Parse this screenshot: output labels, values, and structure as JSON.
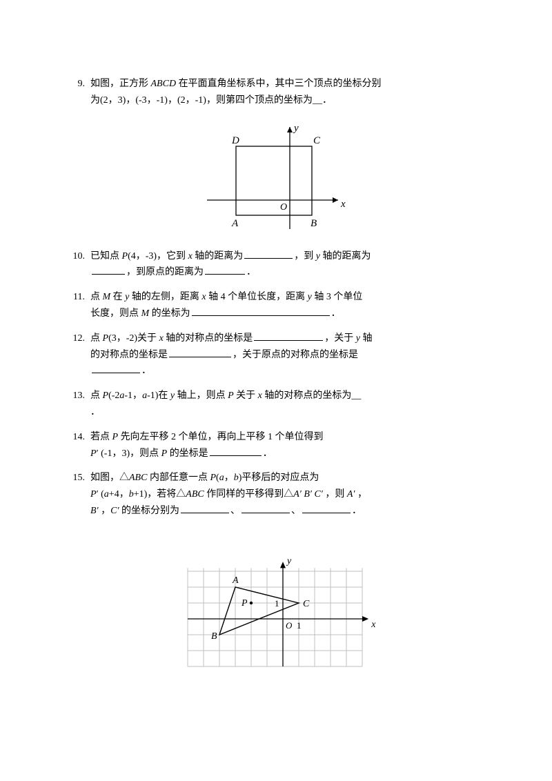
{
  "problems": {
    "9": {
      "num": "9.",
      "line1": "如图，正方形 ",
      "abcd": "ABCD",
      "line1b": " 在平面直角坐标系中，其中三个顶点的坐标分别",
      "line2": "为(2，3)，(-3，-1)，(2，-1)，则第四个顶点的坐标为__．"
    },
    "10": {
      "num": "10.",
      "a": "已知点 ",
      "p": "P",
      "b": "(4，-3)，它到 ",
      "x": "x",
      "c": " 轴的距离为",
      "d": "，到 ",
      "y": "y",
      "e": " 轴的距离为",
      "f": "，到原点的距离为",
      "g": "．"
    },
    "11": {
      "num": "11.",
      "a": "点 ",
      "m": "M",
      "b": " 在 ",
      "y": "y",
      "c": " 轴的左侧，距离 ",
      "x": "x",
      "d": " 轴 4 个单位长度，距离 ",
      "e": " 轴 3 个单位",
      "f": "长度，则点 ",
      "g": " 的坐标为",
      "h": "．"
    },
    "12": {
      "num": "12.",
      "a": "点 ",
      "p": "P",
      "b": "(3，-2)关于 ",
      "x": "x",
      "c": " 轴的对称点的坐标是",
      "d": "，关于 ",
      "y": "y",
      "e": " 轴",
      "f": "的对称点的坐标是",
      "g": "，关于原点的对称点的坐标是",
      "h": "．"
    },
    "13": {
      "num": "13.",
      "a": "点 ",
      "p": "P",
      "b": "(-2",
      "av": "a",
      "c": "-1，",
      "d": "-1)在 ",
      "y": "y",
      "e": " 轴上，则点 ",
      "f": " 关于 ",
      "x": "x",
      "g": " 轴的对称点的坐标为__",
      "h": "．"
    },
    "14": {
      "num": "14.",
      "a": "若点 ",
      "p": "P",
      "b": " 先向左平移 2 个单位，再向上平移 1 个单位得到",
      "c": "′  (-1，3)，则点 ",
      "d": " 的坐标是",
      "e": "．"
    },
    "15": {
      "num": "15.",
      "a": "如图，△",
      "abc": "ABC",
      "b": " 内部任意一点 ",
      "p": "P",
      "c": "(",
      "av": "a",
      "d": "，",
      "bv": "b",
      "e": ")平移后的对应点为",
      "f": "′  (",
      "g": "+4，",
      "h": "+1)，若将△",
      "i": " 作同样的平移得到△",
      "apr": "A′  B′  C′ ",
      "j": " ，则 ",
      "k": "A′ ",
      "l": "，",
      "m": "B′ ",
      "n": " ，",
      "o": "C′",
      "q": "  的坐标分别为",
      "r": "、",
      "s": "、",
      "t": "．"
    }
  },
  "fig9": {
    "labels": {
      "D": "D",
      "C": "C",
      "A": "A",
      "B": "B",
      "O": "O",
      "x": "x",
      "y": "y"
    },
    "colors": {
      "stroke": "#000000",
      "bg": "#ffffff"
    },
    "line_width": 1.2
  },
  "fig15": {
    "labels": {
      "A": "A",
      "B": "B",
      "C": "C",
      "P": "P",
      "O": "O",
      "x": "x",
      "y": "y",
      "one": "1"
    },
    "colors": {
      "grid": "#bfbfbf",
      "axis": "#000000",
      "tri": "#000000",
      "bg": "#ffffff"
    },
    "grid_step": 23,
    "points": {
      "A": [
        -3,
        2
      ],
      "B": [
        -4,
        -1
      ],
      "C": [
        1,
        1
      ],
      "P": [
        -2,
        1
      ]
    }
  }
}
